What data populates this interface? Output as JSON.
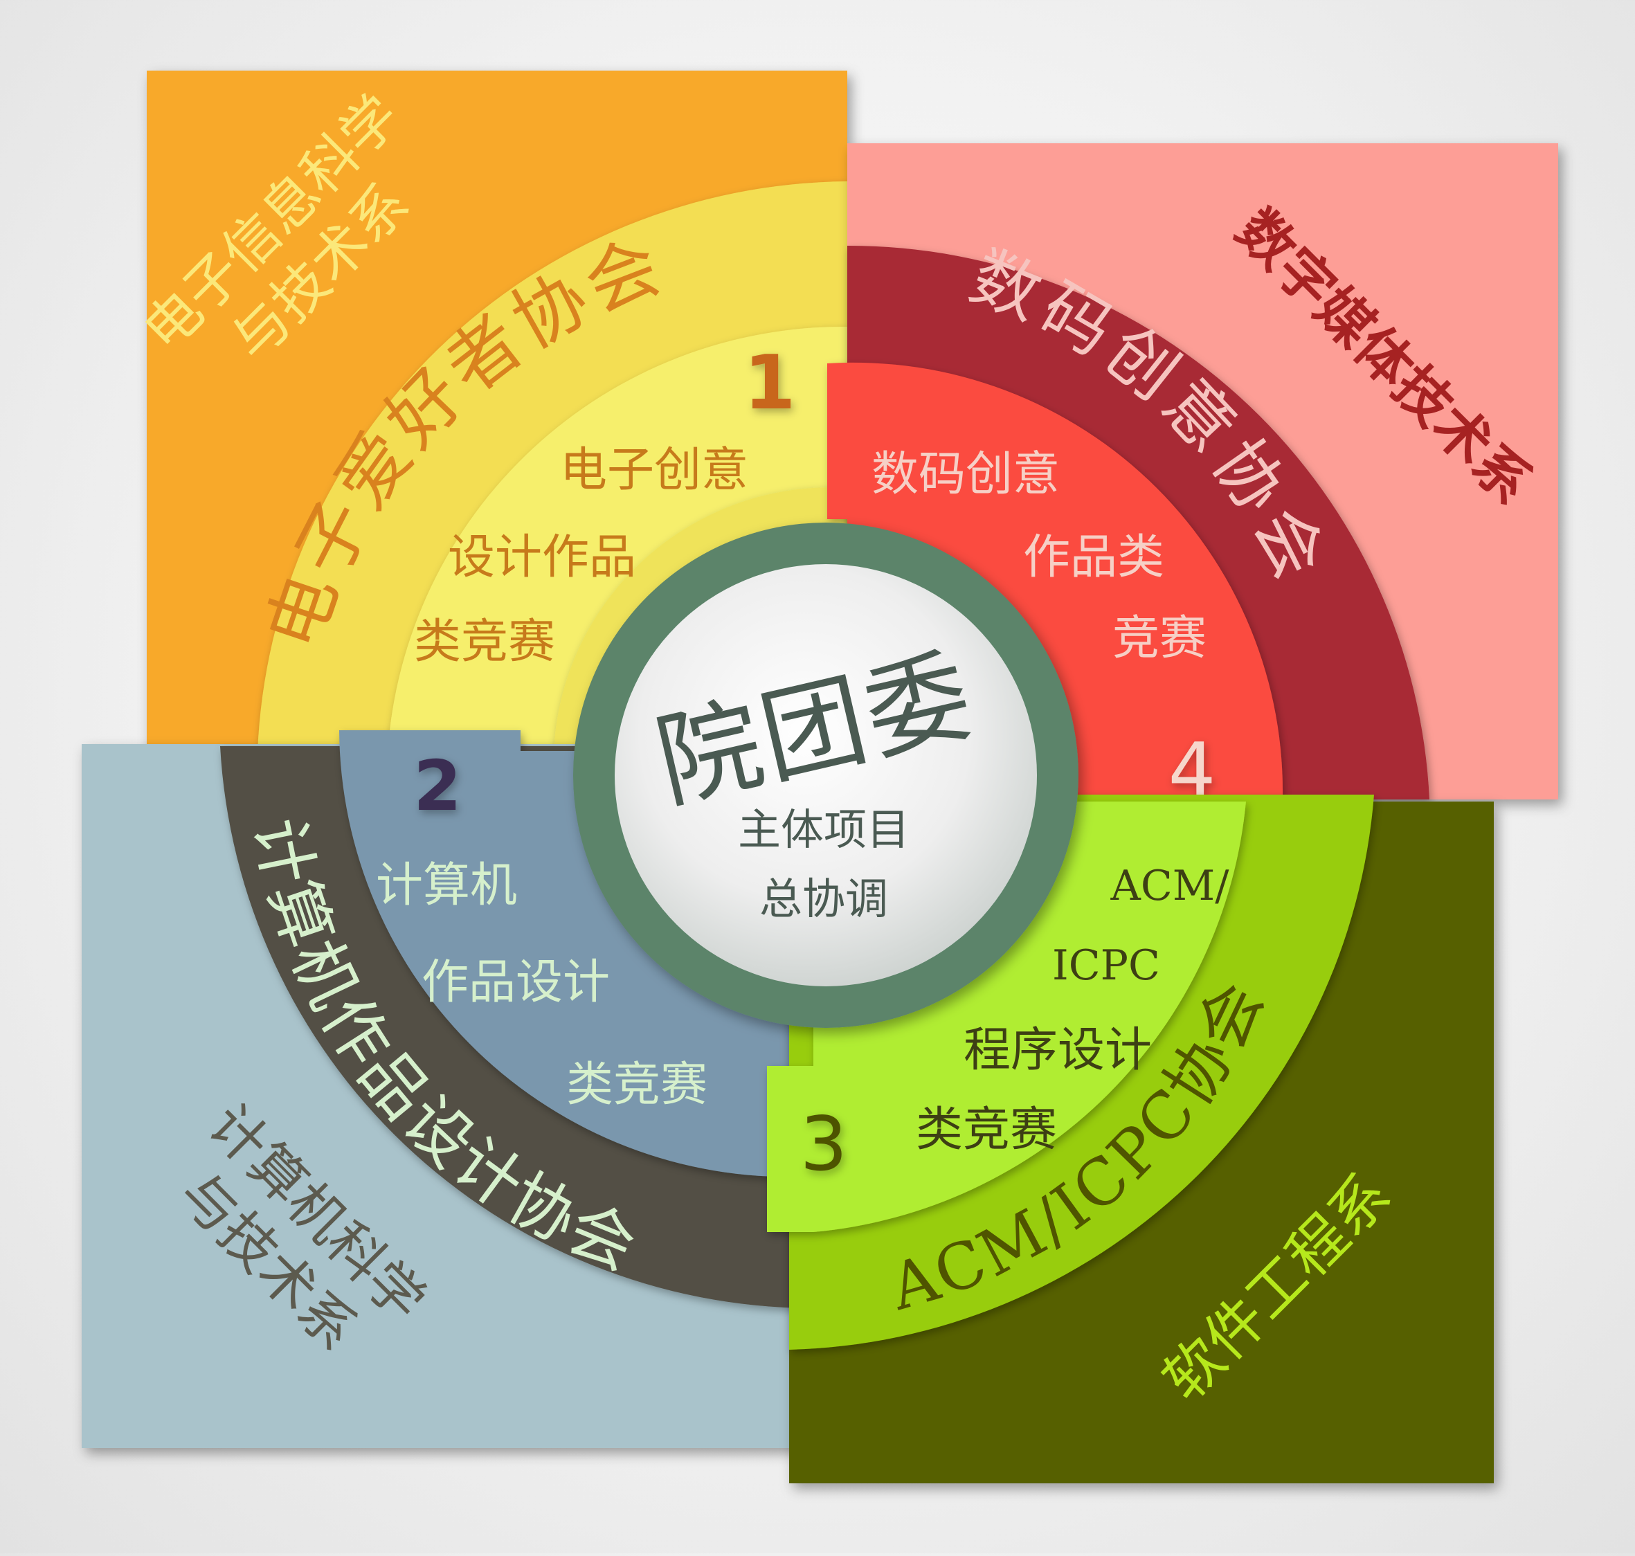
{
  "center": {
    "title": "院团委",
    "subtitle_line1": "主体项目",
    "subtitle_line2": "总协调"
  },
  "quadrants": [
    {
      "number": "1",
      "department": [
        "电子信息科学",
        "与技术系"
      ],
      "association": "电子爱好者协会",
      "competition": [
        "电子创意",
        "设计作品",
        "类竞赛"
      ],
      "colors": {
        "outer": "#f8a92a",
        "band": "#f3de52",
        "inner": "#f6ef6c",
        "number": "#c8661a",
        "dept_text": "#fbe87a",
        "assoc_text": "#d9821e",
        "comp_text": "#c77a1b"
      }
    },
    {
      "number": "2",
      "department": [
        "计算机科学",
        "与技术系"
      ],
      "association": "计算机作品设计协会",
      "competition": [
        "计算机",
        "作品设计",
        "类竞赛"
      ],
      "colors": {
        "outer": "#a9c3cb",
        "band": "#524f44",
        "inner": "#7a97ad",
        "number": "#3a2f52",
        "dept_text": "#5c5a4e",
        "assoc_text": "#d6f0cc",
        "comp_text": "#d6f0cc"
      }
    },
    {
      "number": "3",
      "department": [
        "软件工程系"
      ],
      "association": "ACM/ICPC协会",
      "competition": [
        "ACM/",
        "ICPC",
        "程序设计",
        "类竞赛"
      ],
      "colors": {
        "outer": "#566101",
        "band": "#98cd0c",
        "inner": "#b0ed30",
        "number": "#4d5300",
        "dept_text": "#b6e81c",
        "assoc_text": "#4f5400",
        "comp_text": "#3d3f14"
      }
    },
    {
      "number": "4",
      "department": [
        "数字媒体技术系"
      ],
      "association": "数码创意协会",
      "competition": [
        "数码创意",
        "作品类",
        "竞赛"
      ],
      "colors": {
        "outer": "#fd9e96",
        "band": "#a82935",
        "inner": "#fb4c3f",
        "number": "#f6d7cc",
        "dept_text": "#a62222",
        "assoc_text": "#f6c4bf",
        "comp_text": "#f6d0c6"
      }
    }
  ],
  "center_colors": {
    "ring": "#5b846a",
    "disc": "#e9ecec",
    "text": "#4a5a52"
  }
}
